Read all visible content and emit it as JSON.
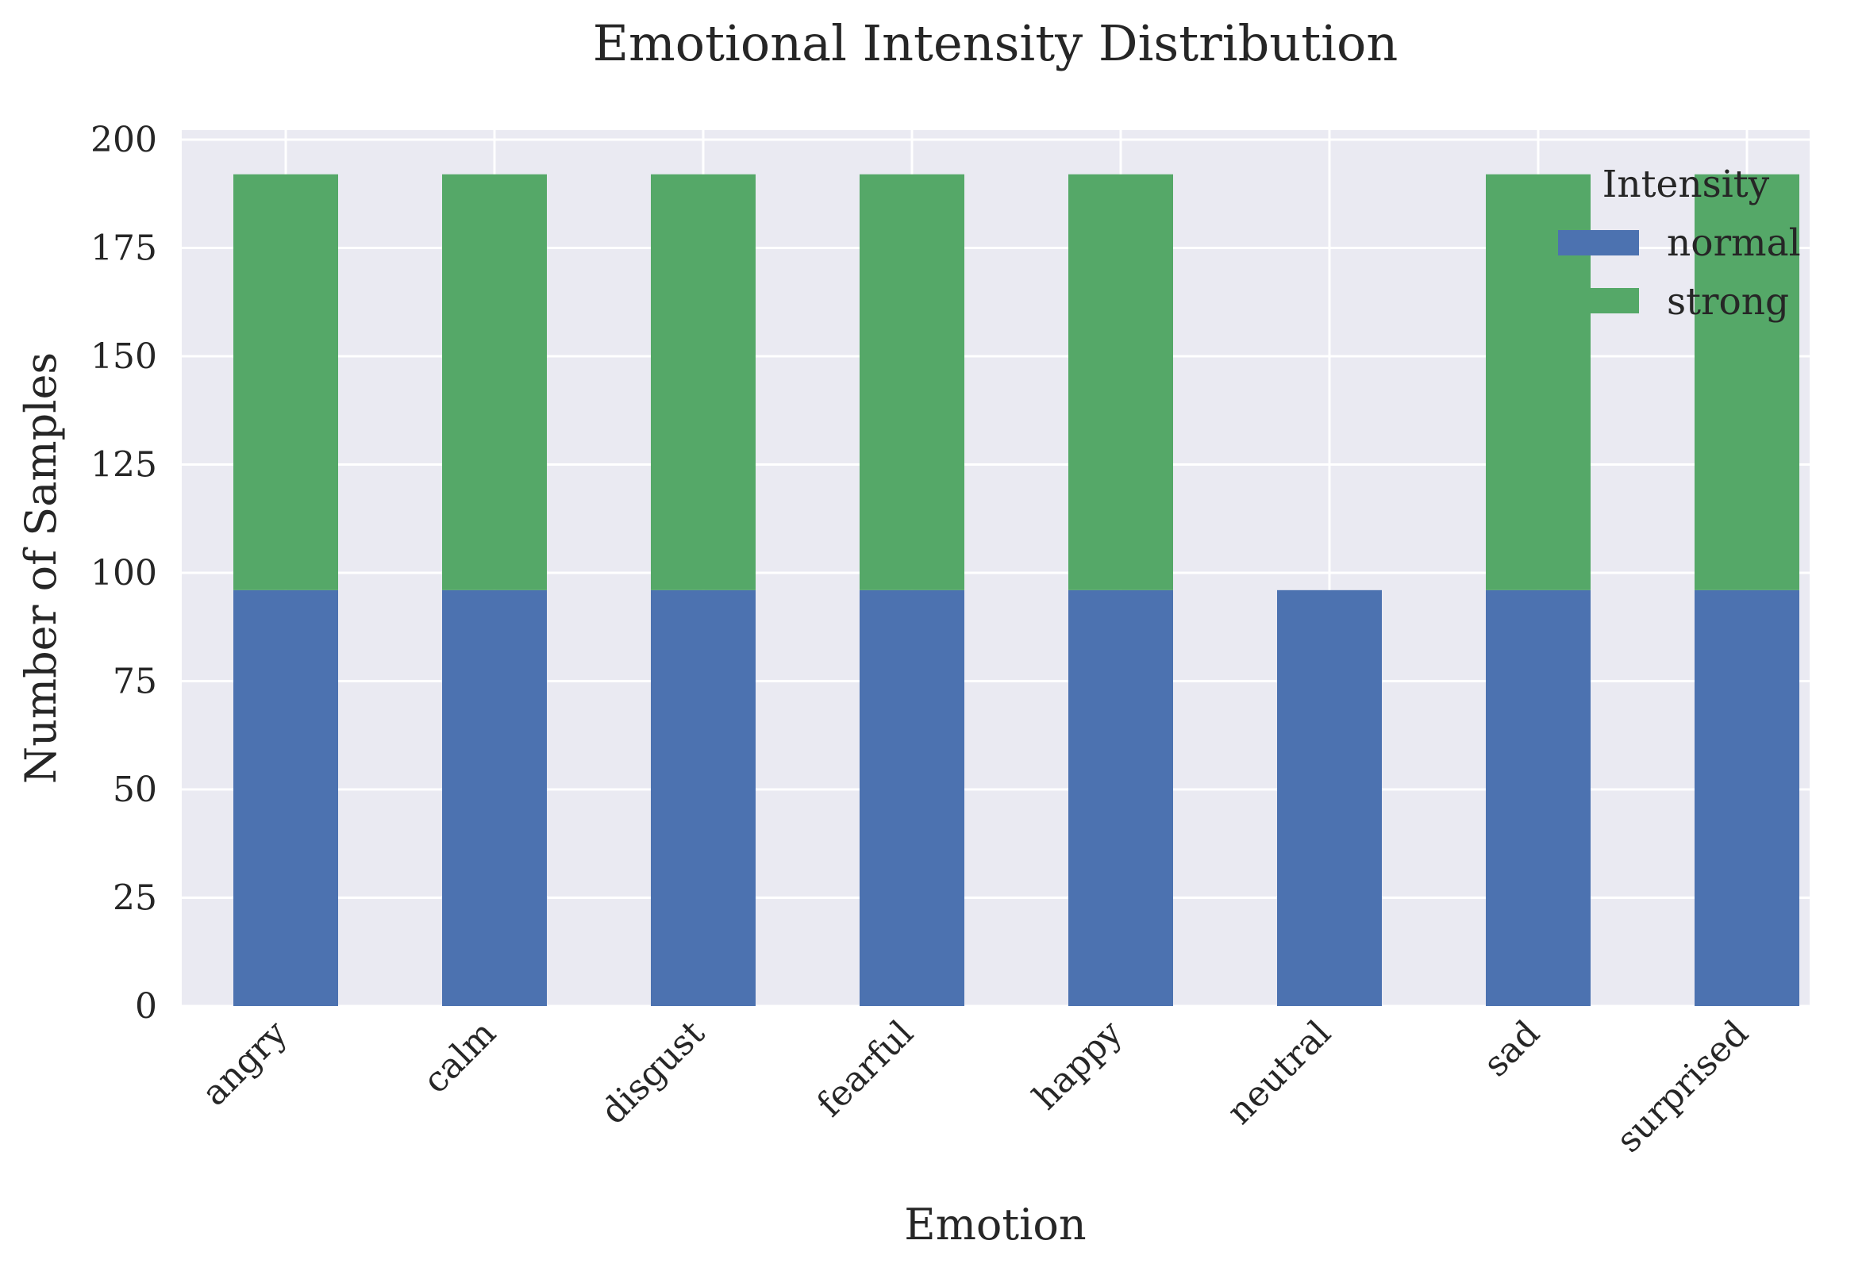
{
  "chart_data": {
    "type": "bar",
    "stacked": true,
    "title": "Emotional Intensity Distribution",
    "xlabel": "Emotion",
    "ylabel": "Number of Samples",
    "categories": [
      "angry",
      "calm",
      "disgust",
      "fearful",
      "happy",
      "neutral",
      "sad",
      "surprised"
    ],
    "series": [
      {
        "name": "normal",
        "color": "#4c72b0",
        "values": [
          96,
          96,
          96,
          96,
          96,
          96,
          96,
          96
        ]
      },
      {
        "name": "strong",
        "color": "#55a868",
        "values": [
          96,
          96,
          96,
          96,
          96,
          0,
          96,
          96
        ]
      }
    ],
    "ylim": [
      0,
      200
    ],
    "yticks": [
      0,
      25,
      50,
      75,
      100,
      125,
      150,
      175,
      200
    ],
    "grid": true,
    "legend": {
      "title": "Intensity",
      "placement": "top-right"
    }
  }
}
